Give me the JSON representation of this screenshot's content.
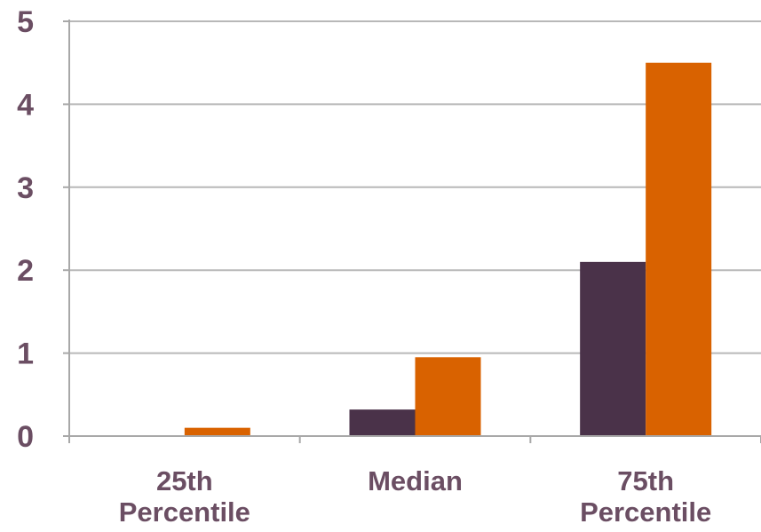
{
  "chart_data": {
    "type": "bar",
    "categories": [
      [
        "25th",
        "Percentile"
      ],
      [
        "Median"
      ],
      [
        "75th",
        "Percentile"
      ]
    ],
    "series": [
      {
        "color": "#4a3249",
        "values": [
          0,
          0.32,
          2.1
        ]
      },
      {
        "color": "#d96200",
        "values": [
          0.1,
          0.95,
          4.5
        ]
      }
    ],
    "yticks": [
      0,
      1,
      2,
      3,
      4,
      5
    ],
    "ylim": [
      0,
      5
    ],
    "grid": true,
    "title": "",
    "xlabel": "",
    "ylabel": "",
    "colors": {
      "text": "#6b4e63",
      "grid": "#b8b8b8",
      "axis": "#a8a8a8"
    }
  }
}
